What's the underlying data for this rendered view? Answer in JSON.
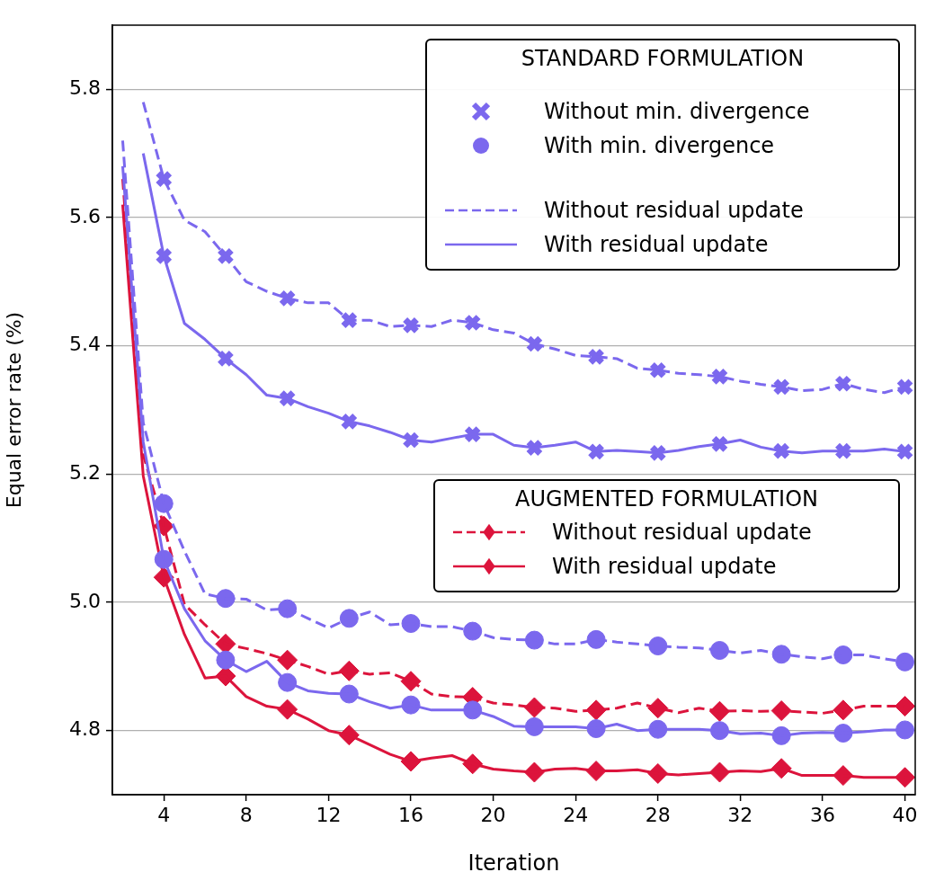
{
  "chart_data": {
    "type": "line",
    "xlabel": "Iteration",
    "ylabel": "Equal error rate (%)",
    "legend_title": "AUGMENTED FORMULATION",
    "legend": "right",
    "grid": "y",
    "xlim": [
      1.5,
      40.5
    ],
    "ylim": [
      4.7,
      5.9
    ],
    "xticks": [
      4,
      8,
      12,
      16,
      20,
      24,
      28,
      32,
      36,
      40
    ],
    "yticks": [
      {
        "value": 4.8,
        "label": "4.8"
      },
      {
        "value": 5.0,
        "label": "5.0"
      },
      {
        "value": 5.2,
        "label": "5.2"
      },
      {
        "value": 5.4,
        "label": "5.4"
      },
      {
        "value": 5.6,
        "label": "5.6"
      },
      {
        "value": 5.8,
        "label": "5.8"
      }
    ],
    "annotations": [
      "STANDARD FORMULATION",
      "Without min. divergence",
      "With min. divergence",
      "Without residual update",
      "With residual update"
    ],
    "x": [
      2,
      3,
      4,
      5,
      6,
      7,
      8,
      9,
      10,
      11,
      12,
      13,
      14,
      15,
      16,
      17,
      18,
      19,
      20,
      21,
      22,
      23,
      24,
      25,
      26,
      27,
      28,
      29,
      30,
      31,
      32,
      33,
      34,
      35,
      36,
      37,
      38,
      39,
      40
    ],
    "series": [
      {
        "type": "line",
        "color": "#7b68ee",
        "line_style": "dashed",
        "marker": "none",
        "values": [
          null,
          5.78,
          5.66,
          5.596,
          5.578,
          5.54,
          5.5,
          5.485,
          5.474,
          5.467,
          5.467,
          5.44,
          5.44,
          5.43,
          5.432,
          5.43,
          5.44,
          5.436,
          5.425,
          5.42,
          5.403,
          5.395,
          5.385,
          5.383,
          5.38,
          5.365,
          5.362,
          5.357,
          5.355,
          5.352,
          5.345,
          5.34,
          5.336,
          5.33,
          5.332,
          5.341,
          5.332,
          5.327,
          5.336
        ]
      },
      {
        "type": "scatter",
        "color": "#7b68ee",
        "marker": "cross",
        "x": [
          4,
          7,
          10,
          13,
          16,
          19,
          22,
          25,
          28,
          31,
          34,
          37,
          40
        ],
        "values": [
          5.66,
          5.54,
          5.474,
          5.44,
          5.432,
          5.436,
          5.403,
          5.383,
          5.362,
          5.352,
          5.336,
          5.341,
          5.336
        ]
      },
      {
        "type": "line",
        "color": "#7b68ee",
        "line_style": "solid",
        "marker": "none",
        "values": [
          null,
          5.7,
          5.54,
          5.435,
          5.41,
          5.38,
          5.355,
          5.323,
          5.318,
          5.305,
          5.295,
          5.282,
          5.275,
          5.265,
          5.253,
          5.25,
          5.256,
          5.262,
          5.262,
          5.245,
          5.241,
          5.245,
          5.25,
          5.235,
          5.237,
          5.235,
          5.233,
          5.237,
          5.243,
          5.247,
          5.253,
          5.242,
          5.236,
          5.233,
          5.236,
          5.236,
          5.236,
          5.239,
          5.235
        ]
      },
      {
        "type": "scatter",
        "color": "#7b68ee",
        "marker": "cross",
        "x": [
          4,
          7,
          10,
          13,
          16,
          19,
          22,
          25,
          28,
          31,
          34,
          37,
          40
        ],
        "values": [
          5.54,
          5.38,
          5.318,
          5.282,
          5.253,
          5.262,
          5.241,
          5.235,
          5.233,
          5.247,
          5.236,
          5.236,
          5.235
        ]
      },
      {
        "type": "line",
        "color": "#7b68ee",
        "line_style": "dashed",
        "marker": "none",
        "values": [
          5.72,
          5.28,
          5.154,
          5.08,
          5.013,
          5.006,
          5.005,
          4.988,
          4.99,
          4.975,
          4.96,
          4.975,
          4.985,
          4.965,
          4.967,
          4.962,
          4.962,
          4.955,
          4.945,
          4.942,
          4.941,
          4.935,
          4.935,
          4.942,
          4.938,
          4.935,
          4.932,
          4.93,
          4.929,
          4.925,
          4.921,
          4.925,
          4.919,
          4.915,
          4.912,
          4.918,
          4.918,
          4.912,
          4.907
        ]
      },
      {
        "type": "scatter",
        "color": "#7b68ee",
        "marker": "circle",
        "x": [
          4,
          7,
          10,
          13,
          16,
          19,
          22,
          25,
          28,
          31,
          34,
          37,
          40
        ],
        "values": [
          5.154,
          5.006,
          4.99,
          4.975,
          4.967,
          4.955,
          4.941,
          4.942,
          4.932,
          4.925,
          4.919,
          4.918,
          4.907
        ]
      },
      {
        "type": "line",
        "color": "#7b68ee",
        "line_style": "solid",
        "marker": "none",
        "values": [
          5.68,
          5.25,
          5.067,
          4.99,
          4.94,
          4.91,
          4.892,
          4.908,
          4.875,
          4.862,
          4.858,
          4.857,
          4.845,
          4.835,
          4.84,
          4.832,
          4.832,
          4.832,
          4.822,
          4.807,
          4.806,
          4.806,
          4.806,
          4.803,
          4.81,
          4.8,
          4.802,
          4.802,
          4.802,
          4.8,
          4.795,
          4.796,
          4.792,
          4.796,
          4.797,
          4.796,
          4.798,
          4.801,
          4.801
        ]
      },
      {
        "type": "scatter",
        "color": "#7b68ee",
        "marker": "circle",
        "x": [
          4,
          7,
          10,
          13,
          16,
          19,
          22,
          25,
          28,
          31,
          34,
          37,
          40
        ],
        "values": [
          5.067,
          4.91,
          4.875,
          4.857,
          4.84,
          4.832,
          4.806,
          4.803,
          4.802,
          4.8,
          4.792,
          4.796,
          4.801
        ]
      },
      {
        "type": "line",
        "name": "Without residual update",
        "color": "#dc143c",
        "line_style": "dashed",
        "marker": "none",
        "values": [
          5.66,
          5.23,
          5.119,
          4.997,
          4.965,
          4.935,
          4.928,
          4.92,
          4.91,
          4.9,
          4.888,
          4.893,
          4.888,
          4.89,
          4.877,
          4.857,
          4.853,
          4.852,
          4.843,
          4.84,
          4.836,
          4.835,
          4.83,
          4.832,
          4.835,
          4.843,
          4.835,
          4.828,
          4.835,
          4.83,
          4.831,
          4.83,
          4.831,
          4.829,
          4.827,
          4.832,
          4.838,
          4.838,
          4.838
        ]
      },
      {
        "type": "scatter",
        "color": "#dc143c",
        "marker": "diamond",
        "x": [
          4,
          7,
          10,
          13,
          16,
          19,
          22,
          25,
          28,
          31,
          34,
          37,
          40
        ],
        "values": [
          5.119,
          4.935,
          4.91,
          4.893,
          4.877,
          4.852,
          4.836,
          4.832,
          4.835,
          4.83,
          4.831,
          4.832,
          4.838
        ]
      },
      {
        "type": "line",
        "name": "With residual update",
        "color": "#dc143c",
        "line_style": "solid",
        "marker": "none",
        "values": [
          5.62,
          5.197,
          5.039,
          4.95,
          4.882,
          4.885,
          4.853,
          4.838,
          4.833,
          4.818,
          4.8,
          4.793,
          4.778,
          4.763,
          4.752,
          4.757,
          4.761,
          4.748,
          4.74,
          4.737,
          4.735,
          4.74,
          4.741,
          4.737,
          4.737,
          4.739,
          4.733,
          4.731,
          4.733,
          4.735,
          4.737,
          4.736,
          4.741,
          4.73,
          4.73,
          4.73,
          4.727,
          4.727,
          4.727
        ]
      },
      {
        "type": "scatter",
        "color": "#dc143c",
        "marker": "diamond",
        "x": [
          4,
          7,
          10,
          13,
          16,
          19,
          22,
          25,
          28,
          31,
          34,
          37,
          40
        ],
        "values": [
          5.039,
          4.885,
          4.833,
          4.793,
          4.752,
          4.748,
          4.735,
          4.737,
          4.733,
          4.735,
          4.741,
          4.73,
          4.727
        ]
      }
    ]
  }
}
